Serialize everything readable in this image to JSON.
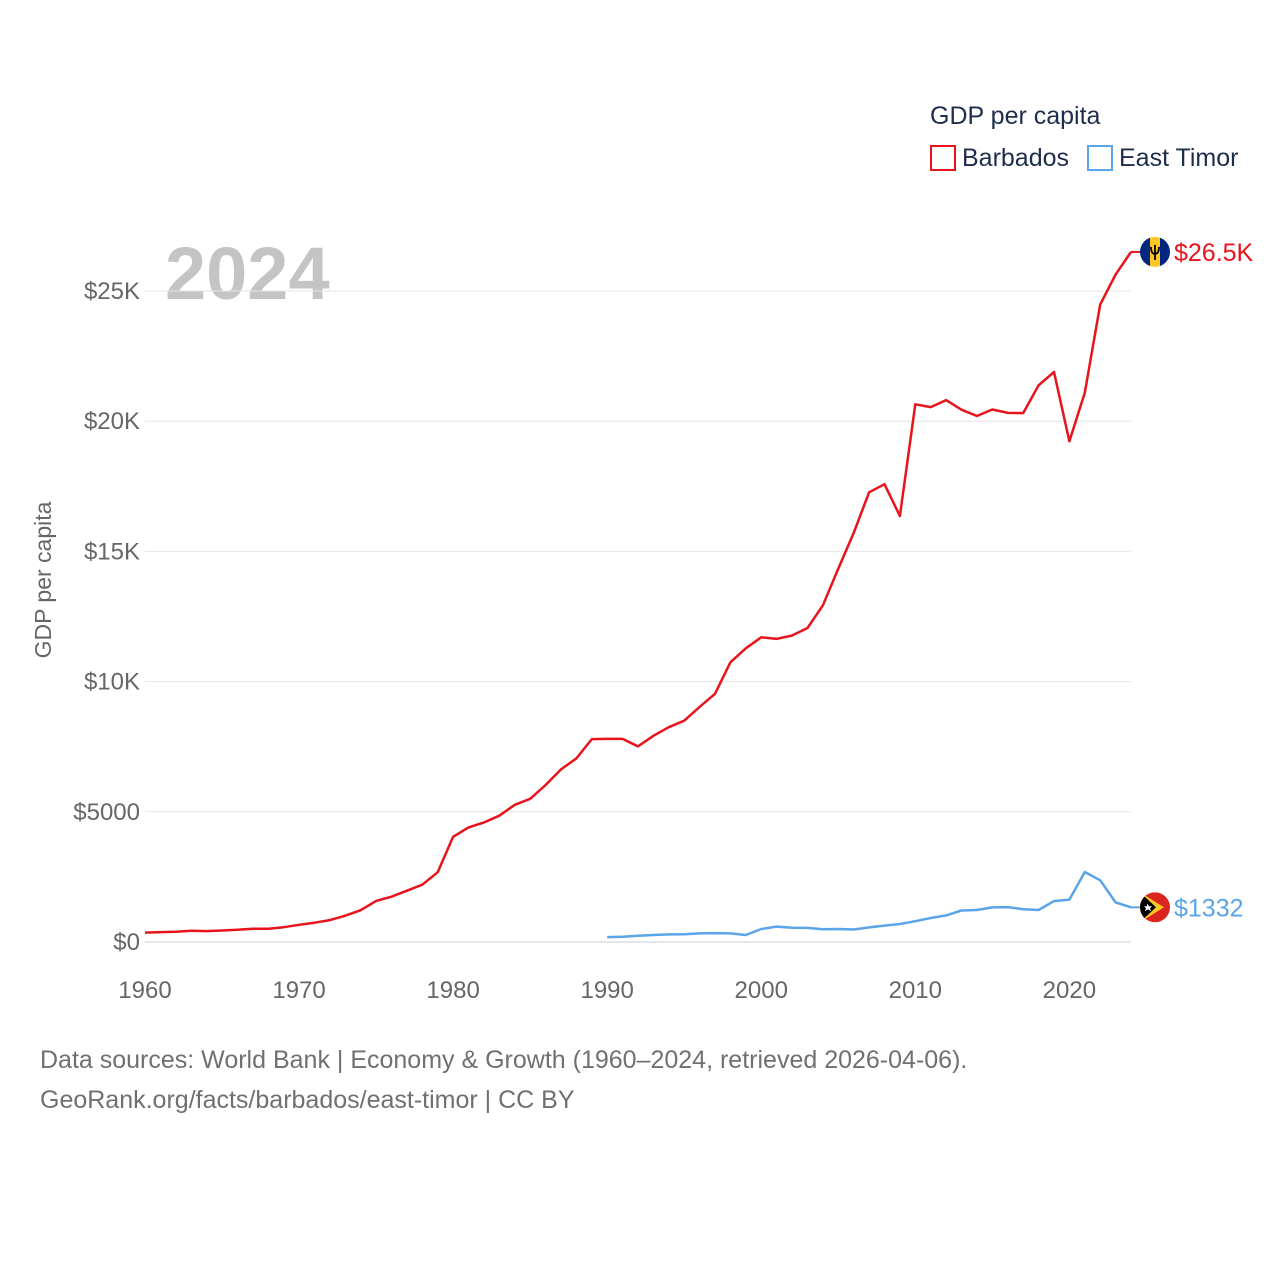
{
  "chart_data": {
    "type": "line",
    "title": "2024",
    "xlabel": "",
    "ylabel": "GDP per capita",
    "xlim": [
      1960,
      2024
    ],
    "ylim": [
      0,
      27000
    ],
    "x_ticks": [
      1960,
      1970,
      1980,
      1990,
      2000,
      2010,
      2020
    ],
    "x_tick_labels": [
      "1960",
      "1970",
      "1980",
      "1990",
      "2000",
      "2010",
      "2020"
    ],
    "y_ticks": [
      0,
      5000,
      10000,
      15000,
      20000,
      25000
    ],
    "y_tick_labels": [
      "$0",
      "$5000",
      "$10K",
      "$15K",
      "$20K",
      "$25K"
    ],
    "grid": true,
    "legend": {
      "title": "GDP per capita",
      "position": "top-right"
    },
    "series": [
      {
        "name": "Barbados",
        "color": "#e8141c",
        "end_label": "$26.5K",
        "flag_icon": "barbados-flag-icon",
        "x": [
          1960,
          1961,
          1962,
          1963,
          1964,
          1965,
          1966,
          1967,
          1968,
          1969,
          1970,
          1971,
          1972,
          1973,
          1974,
          1975,
          1976,
          1977,
          1978,
          1979,
          1980,
          1981,
          1982,
          1983,
          1984,
          1985,
          1986,
          1987,
          1988,
          1989,
          1990,
          1991,
          1992,
          1993,
          1994,
          1995,
          1996,
          1997,
          1998,
          1999,
          2000,
          2001,
          2002,
          2003,
          2004,
          2005,
          2006,
          2007,
          2008,
          2009,
          2010,
          2011,
          2012,
          2013,
          2014,
          2015,
          2016,
          2017,
          2018,
          2019,
          2020,
          2021,
          2022,
          2023,
          2024
        ],
        "values": [
          360,
          380,
          390,
          430,
          420,
          440,
          470,
          510,
          510,
          570,
          660,
          740,
          840,
          1010,
          1220,
          1580,
          1740,
          1970,
          2200,
          2680,
          4040,
          4400,
          4590,
          4850,
          5270,
          5500,
          6030,
          6630,
          7050,
          7790,
          7800,
          7800,
          7510,
          7920,
          8250,
          8500,
          9030,
          9530,
          10740,
          11280,
          11700,
          11640,
          11770,
          12060,
          12930,
          14340,
          15710,
          17270,
          17580,
          16360,
          20650,
          20540,
          20810,
          20440,
          20200,
          20450,
          20320,
          20310,
          21380,
          21890,
          19230,
          21090,
          24480,
          25630,
          26500
        ]
      },
      {
        "name": "East Timor",
        "color": "#5aa4e8",
        "end_label": "$1332",
        "flag_icon": "east-timor-flag-icon",
        "x": [
          1990,
          1991,
          1992,
          1993,
          1994,
          1995,
          1996,
          1997,
          1998,
          1999,
          2000,
          2001,
          2002,
          2003,
          2004,
          2005,
          2006,
          2007,
          2008,
          2009,
          2010,
          2011,
          2012,
          2013,
          2014,
          2015,
          2016,
          2017,
          2018,
          2019,
          2020,
          2021,
          2022,
          2023,
          2024
        ],
        "values": [
          190,
          200,
          240,
          270,
          290,
          300,
          330,
          340,
          330,
          270,
          500,
          590,
          550,
          540,
          490,
          500,
          480,
          560,
          630,
          690,
          800,
          920,
          1020,
          1210,
          1230,
          1330,
          1340,
          1260,
          1230,
          1570,
          1630,
          2690,
          2370,
          1520,
          1332
        ]
      }
    ]
  },
  "footer": {
    "line1": "Data sources: World Bank | Economy & Growth (1960–2024, retrieved 2026-04-06).",
    "line2": "GeoRank.org/facts/barbados/east-timor | CC BY"
  }
}
